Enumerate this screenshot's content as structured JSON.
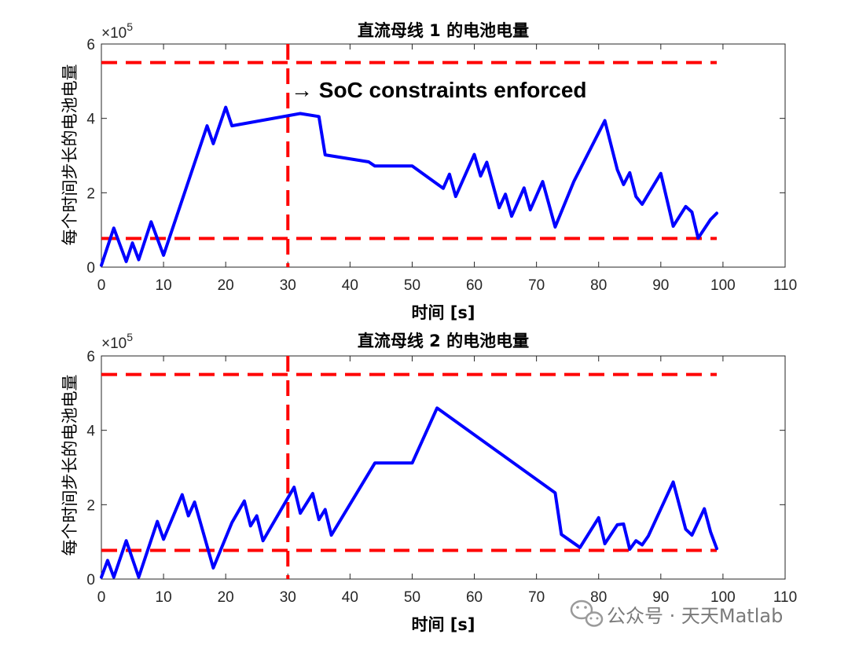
{
  "chart_data": [
    {
      "type": "line",
      "title": "直流母线 1 的电池电量",
      "xlabel": "时间 [s]",
      "ylabel": "每个时间步长的电池电量",
      "xlim": [
        0,
        110
      ],
      "ylim": [
        0,
        600000
      ],
      "xticks": [
        0,
        10,
        20,
        30,
        40,
        50,
        60,
        70,
        80,
        90,
        100,
        110
      ],
      "yticks": [
        0,
        2,
        4,
        6
      ],
      "y_exponent_label": "×10",
      "y_exponent": "5",
      "annotation": "→ SoC constraints enforced",
      "vline_x": 30,
      "hlines": [
        550000,
        77000
      ],
      "series": [
        {
          "color": "#0000ff",
          "x": [
            0,
            2,
            4,
            5,
            6,
            8,
            10,
            17,
            18,
            20,
            21,
            32,
            35,
            36,
            43,
            44,
            50,
            55,
            56,
            57,
            60,
            61,
            62,
            64,
            65,
            66,
            68,
            69,
            71,
            73,
            76,
            81,
            83,
            84,
            85,
            86,
            87,
            90,
            92,
            94,
            95,
            96,
            98,
            99
          ],
          "y": [
            5000,
            105000,
            15000,
            65000,
            20000,
            122000,
            32000,
            380000,
            332000,
            430000,
            380000,
            413000,
            405000,
            302000,
            283000,
            272000,
            272000,
            212000,
            250000,
            190000,
            303000,
            245000,
            282000,
            160000,
            196000,
            137000,
            213000,
            154000,
            230000,
            108000,
            230000,
            394000,
            262000,
            222000,
            254000,
            190000,
            169000,
            252000,
            110000,
            163000,
            148000,
            78000,
            128000,
            145000
          ]
        }
      ]
    },
    {
      "type": "line",
      "title": "直流母线 2 的电池电量",
      "xlabel": "时间 [s]",
      "ylabel": "每个时间步长的电池电量",
      "xlim": [
        0,
        110
      ],
      "ylim": [
        0,
        600000
      ],
      "xticks": [
        0,
        10,
        20,
        30,
        40,
        50,
        60,
        70,
        80,
        90,
        100,
        110
      ],
      "yticks": [
        0,
        2,
        4,
        6
      ],
      "y_exponent_label": "×10",
      "y_exponent": "5",
      "vline_x": 30,
      "hlines": [
        550000,
        77000
      ],
      "series": [
        {
          "color": "#0000ff",
          "x": [
            0,
            1,
            2,
            4,
            6,
            9,
            10,
            13,
            14,
            15,
            18,
            21,
            23,
            24,
            25,
            26,
            31,
            32,
            34,
            35,
            36,
            37,
            44,
            50,
            54,
            73,
            74,
            77,
            80,
            81,
            83,
            84,
            85,
            86,
            87,
            88,
            92,
            94,
            95,
            97,
            98,
            99
          ],
          "y": [
            5000,
            50000,
            5000,
            103000,
            5000,
            155000,
            107000,
            227000,
            170000,
            207000,
            30000,
            152000,
            210000,
            143000,
            170000,
            103000,
            247000,
            177000,
            230000,
            160000,
            187000,
            118000,
            312000,
            312000,
            460000,
            232000,
            120000,
            85000,
            165000,
            95000,
            146000,
            148000,
            80000,
            103000,
            92000,
            116000,
            261000,
            134000,
            118000,
            189000,
            127000,
            82000
          ]
        }
      ]
    }
  ],
  "watermark": {
    "text": "公众号 · 天天Matlab",
    "icon": "wechat-icon"
  },
  "colors": {
    "line": "#0000ff",
    "reference": "#ff0000",
    "axis": "#262626"
  }
}
